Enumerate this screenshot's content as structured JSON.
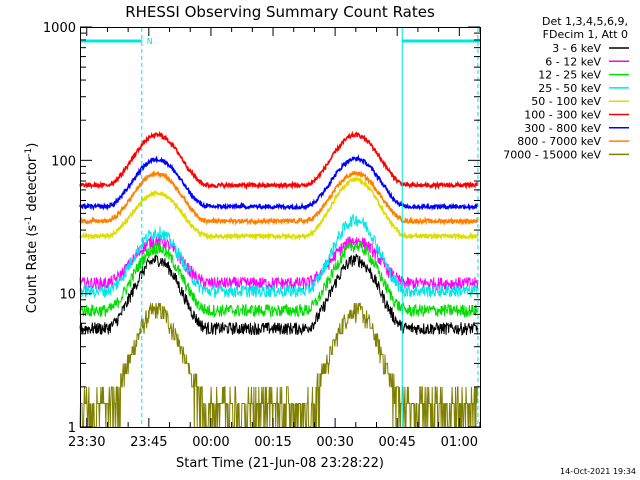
{
  "chart_data": {
    "type": "line",
    "title": "RHESSI Observing Summary Count Rates",
    "xlabel": "Start Time (21-Jun-08 23:28:22)",
    "ylabel_main": "Count Rate (s",
    "ylabel_sup1": "-1",
    "ylabel_mid": " detector",
    "ylabel_sup2": "-1",
    "ylabel_end": ")",
    "yscale": "log",
    "ylim": [
      1,
      1000
    ],
    "xlim_minutes": [
      -1.63,
      95.0
    ],
    "x_ticks": [
      {
        "min": 0,
        "label": "23:30"
      },
      {
        "min": 15,
        "label": "23:45"
      },
      {
        "min": 30,
        "label": "00:00"
      },
      {
        "min": 45,
        "label": "00:15"
      },
      {
        "min": 60,
        "label": "00:30"
      },
      {
        "min": 75,
        "label": "00:45"
      },
      {
        "min": 90,
        "label": "01:00"
      }
    ],
    "y_ticks": [
      {
        "v": 1,
        "label": "1"
      },
      {
        "v": 10,
        "label": "10"
      },
      {
        "v": 100,
        "label": "100"
      },
      {
        "v": 1000,
        "label": "1000"
      }
    ],
    "legend_header": [
      "Det 1,3,4,5,6,9,",
      "FDecim 1, Att 0"
    ],
    "legend_position": "top-right",
    "series": [
      {
        "name": "3 - 6 keV",
        "color": "#000000",
        "bottom": 5.5,
        "peak1": 18,
        "peak2": 18
      },
      {
        "name": "6 - 12 keV",
        "color": "#ff00ff",
        "bottom": 12,
        "peak1": 25,
        "peak2": 25
      },
      {
        "name": "12 - 25 keV",
        "color": "#00dd00",
        "bottom": 7.5,
        "peak1": 22,
        "peak2": 23
      },
      {
        "name": "25 - 50 keV",
        "color": "#00e5e5",
        "bottom": 10.5,
        "peak1": 29,
        "peak2": 36
      },
      {
        "name": "50 - 100 keV",
        "color": "#dddd00",
        "bottom": 27,
        "peak1": 57,
        "peak2": 72
      },
      {
        "name": "100 - 300 keV",
        "color": "#ff0000",
        "bottom": 65,
        "peak1": 155,
        "peak2": 155
      },
      {
        "name": "300 - 800 keV",
        "color": "#0000ff",
        "bottom": 45,
        "peak1": 102,
        "peak2": 103
      },
      {
        "name": "800 - 7000 keV",
        "color": "#ff8000",
        "bottom": 35,
        "peak1": 80,
        "peak2": 80
      },
      {
        "name": "7000 - 15000 keV",
        "color": "#808000",
        "bottom": 1.6,
        "peak1": 7.5,
        "peak2": 7.5
      }
    ],
    "annotations": {
      "night_label": "N",
      "night_bar_ranges_minutes": [
        [
          -1.63,
          13.3
        ],
        [
          76.1,
          95.0
        ]
      ],
      "saa_lines_minutes": [
        -1.63,
        76.1
      ],
      "night_lines_minutes": [
        13.3,
        94.5
      ],
      "night_color": "#00e5e5"
    }
  },
  "footer_date": "14-Oct-2021 19:34"
}
